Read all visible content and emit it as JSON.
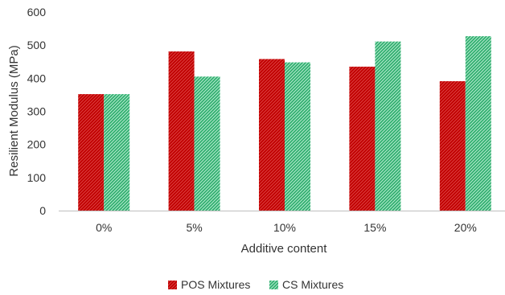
{
  "chart_data": {
    "type": "bar",
    "title": "",
    "xlabel": "Additive content",
    "ylabel": "Resilient Modulus (MPa)",
    "ylim": [
      0,
      600
    ],
    "yticks": [
      0,
      100,
      200,
      300,
      400,
      500,
      600
    ],
    "categories": [
      "0%",
      "5%",
      "10%",
      "15%",
      "20%"
    ],
    "series": [
      {
        "name": "POS Mixtures",
        "color": "#c00000",
        "values": [
          352,
          481,
          458,
          435,
          391
        ]
      },
      {
        "name": "CS Mixtures",
        "color": "#3dba7a",
        "values": [
          352,
          405,
          448,
          511,
          527
        ]
      }
    ],
    "legend": {
      "placement": "bottom-center"
    },
    "grid": false
  }
}
